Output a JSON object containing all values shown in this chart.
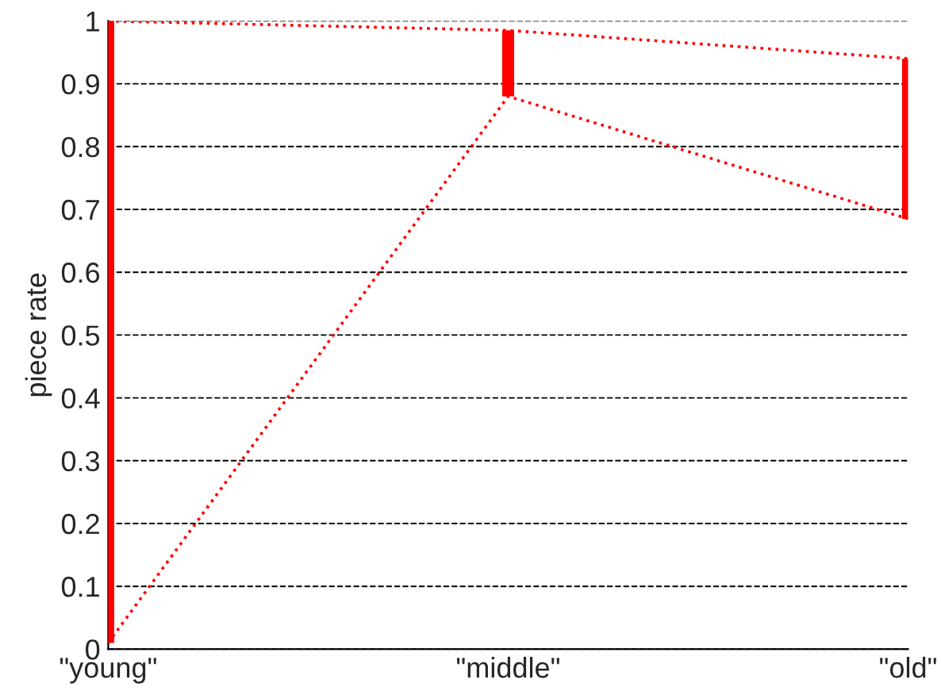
{
  "chart_data": {
    "type": "bar",
    "ylabel": "piece rate",
    "categories": [
      "\"young\"",
      "\"middle\"",
      "\"old\""
    ],
    "series": [
      {
        "color": "#ff0000",
        "base": [
          0.01,
          0.88,
          0.685
        ],
        "values": [
          0.99,
          0.105,
          0.255
        ]
      },
      {
        "type": "line",
        "color": "#ff0000",
        "line_style": "dotted",
        "marker": "none",
        "values": [
          1.0,
          0.985,
          0.94
        ]
      },
      {
        "type": "line",
        "color": "#ff0000",
        "line_style": "dotted",
        "marker": "none",
        "values": [
          0.01,
          0.88,
          0.685
        ]
      }
    ],
    "ylim": [
      0,
      1
    ],
    "yticks": [
      0,
      0.1,
      0.2,
      0.3,
      0.4,
      0.5,
      0.6,
      0.7,
      0.8,
      0.9,
      1
    ],
    "grid": "y"
  }
}
